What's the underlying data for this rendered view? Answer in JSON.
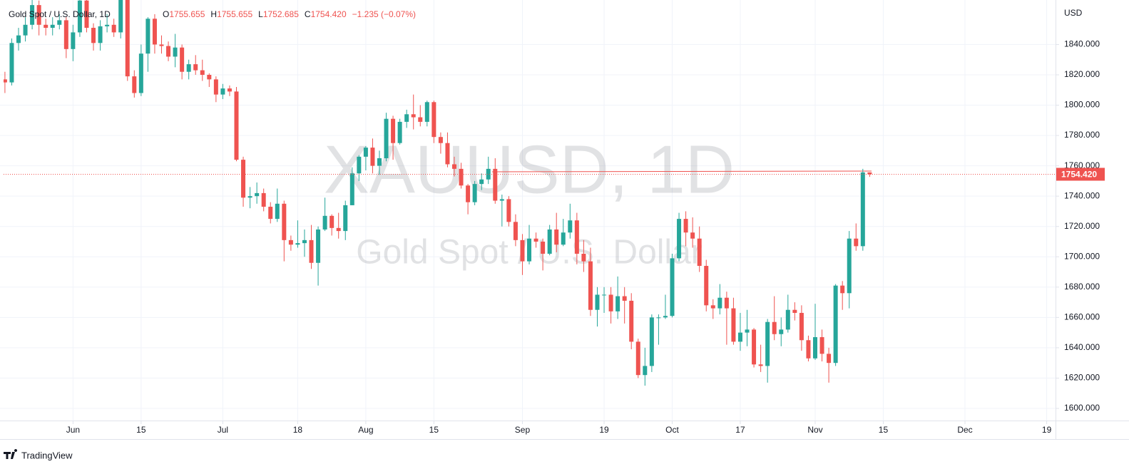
{
  "chart_data": {
    "type": "candlestick",
    "title": "Gold Spot / U.S. Dollar, 1D",
    "ohlc_header": [
      {
        "label": "O",
        "value": "1755.655"
      },
      {
        "label": "H",
        "value": "1755.655"
      },
      {
        "label": "L",
        "value": "1752.685"
      },
      {
        "label": "C",
        "value": "1754.420"
      }
    ],
    "change": "−1.235 (−0.07%)",
    "watermark": "XAUUSD, 1D",
    "watermark_subtitle": "Gold Spot / U.S. Dollar",
    "y_axis_label": "USD",
    "last_price_label": "1754.420",
    "brand": "TradingView",
    "up_color": "#26a69a",
    "down_color": "#ef5350",
    "grid": true,
    "open": [
      1817,
      1815,
      1841,
      1846,
      1853,
      1866,
      1853,
      1851,
      1853,
      1856,
      1837,
      1848,
      1869,
      1851,
      1841,
      1852,
      1853,
      1848,
      1871,
      1819,
      1808,
      1834,
      1857,
      1840,
      1839,
      1832,
      1838,
      1822,
      1827,
      1823,
      1820,
      1817,
      1807,
      1811,
      1809,
      1764,
      1739,
      1740,
      1742,
      1733,
      1725,
      1735,
      1711,
      1708,
      1709,
      1711,
      1696,
      1718,
      1727,
      1719,
      1717,
      1734,
      1755,
      1766,
      1772,
      1760,
      1765,
      1791,
      1775,
      1789,
      1794,
      1792,
      1789,
      1802,
      1779,
      1775,
      1761,
      1758,
      1747,
      1736,
      1748,
      1751,
      1758,
      1737,
      1738,
      1723,
      1711,
      1697,
      1712,
      1710,
      1702,
      1718,
      1708,
      1716,
      1724,
      1702,
      1697,
      1665,
      1675,
      1675,
      1664,
      1674,
      1671,
      1644,
      1622,
      1628,
      1660,
      1660,
      1661,
      1699,
      1725,
      1716,
      1712,
      1694,
      1668,
      1666,
      1673,
      1666,
      1644,
      1650,
      1652,
      1629,
      1628,
      1657,
      1649,
      1652,
      1665,
      1663,
      1645,
      1633,
      1647,
      1636,
      1630,
      1681,
      1676,
      1712,
      1707,
      1755.655
    ],
    "high": [
      1822,
      1844,
      1851,
      1858,
      1870,
      1869,
      1857,
      1858,
      1860,
      1858,
      1853,
      1872,
      1874,
      1854,
      1856,
      1860,
      1857,
      1875,
      1875,
      1823,
      1840,
      1858,
      1860,
      1846,
      1842,
      1847,
      1840,
      1830,
      1833,
      1830,
      1821,
      1819,
      1814,
      1813,
      1812,
      1766,
      1746,
      1749,
      1745,
      1736,
      1745,
      1737,
      1714,
      1724,
      1718,
      1721,
      1720,
      1739,
      1728,
      1729,
      1737,
      1759,
      1767,
      1773,
      1778,
      1770,
      1795,
      1793,
      1791,
      1797,
      1807,
      1800,
      1803,
      1803,
      1782,
      1782,
      1766,
      1762,
      1748,
      1750,
      1755,
      1766,
      1765,
      1741,
      1740,
      1728,
      1715,
      1721,
      1716,
      1712,
      1721,
      1729,
      1725,
      1735,
      1729,
      1711,
      1706,
      1680,
      1680,
      1680,
      1687,
      1680,
      1676,
      1646,
      1640,
      1662,
      1662,
      1675,
      1702,
      1729,
      1730,
      1726,
      1720,
      1698,
      1672,
      1682,
      1677,
      1673,
      1663,
      1665,
      1653,
      1642,
      1659,
      1674,
      1660,
      1675,
      1670,
      1668,
      1648,
      1669,
      1652,
      1640,
      1682,
      1684,
      1717,
      1722,
      1758,
      1755.655
    ],
    "low": [
      1808,
      1813,
      1836,
      1842,
      1850,
      1846,
      1846,
      1846,
      1850,
      1831,
      1829,
      1845,
      1848,
      1836,
      1836,
      1848,
      1845,
      1844,
      1816,
      1805,
      1806,
      1822,
      1834,
      1834,
      1829,
      1825,
      1817,
      1817,
      1820,
      1816,
      1812,
      1802,
      1804,
      1806,
      1763,
      1733,
      1732,
      1735,
      1730,
      1722,
      1723,
      1697,
      1704,
      1706,
      1700,
      1692,
      1681,
      1717,
      1714,
      1712,
      1711,
      1734,
      1750,
      1757,
      1755,
      1754,
      1763,
      1764,
      1774,
      1785,
      1784,
      1786,
      1786,
      1775,
      1768,
      1759,
      1753,
      1745,
      1728,
      1734,
      1744,
      1748,
      1735,
      1720,
      1720,
      1707,
      1688,
      1695,
      1706,
      1691,
      1701,
      1703,
      1707,
      1712,
      1695,
      1690,
      1661,
      1654,
      1663,
      1656,
      1659,
      1656,
      1639,
      1620,
      1615,
      1624,
      1642,
      1659,
      1660,
      1697,
      1707,
      1706,
      1690,
      1664,
      1659,
      1662,
      1642,
      1642,
      1638,
      1641,
      1627,
      1624,
      1617,
      1645,
      1641,
      1650,
      1658,
      1638,
      1631,
      1632,
      1631,
      1617,
      1628,
      1665,
      1666,
      1704,
      1704,
      1752.685
    ],
    "close": [
      1815,
      1841,
      1846,
      1853,
      1866,
      1853,
      1851,
      1853,
      1856,
      1837,
      1848,
      1869,
      1851,
      1841,
      1852,
      1853,
      1848,
      1871,
      1819,
      1808,
      1834,
      1857,
      1840,
      1839,
      1832,
      1838,
      1822,
      1827,
      1823,
      1820,
      1817,
      1807,
      1811,
      1809,
      1764,
      1739,
      1740,
      1742,
      1733,
      1725,
      1735,
      1711,
      1708,
      1709,
      1711,
      1696,
      1718,
      1727,
      1719,
      1717,
      1734,
      1755,
      1766,
      1772,
      1760,
      1765,
      1791,
      1775,
      1789,
      1794,
      1792,
      1789,
      1802,
      1779,
      1775,
      1761,
      1758,
      1747,
      1736,
      1748,
      1751,
      1758,
      1737,
      1738,
      1723,
      1711,
      1697,
      1712,
      1710,
      1702,
      1718,
      1708,
      1716,
      1724,
      1702,
      1697,
      1665,
      1675,
      1675,
      1664,
      1674,
      1671,
      1644,
      1622,
      1628,
      1660,
      1660,
      1661,
      1699,
      1725,
      1716,
      1712,
      1694,
      1668,
      1666,
      1673,
      1666,
      1644,
      1650,
      1652,
      1629,
      1628,
      1657,
      1649,
      1652,
      1665,
      1663,
      1645,
      1633,
      1647,
      1636,
      1630,
      1681,
      1676,
      1712,
      1707,
      1755.655,
      1754.42
    ],
    "xlim": [
      -0.2,
      154.3
    ],
    "xticks": [
      {
        "value": 10,
        "label": "Jun"
      },
      {
        "value": 20,
        "label": "15"
      },
      {
        "value": 32,
        "label": "Jul"
      },
      {
        "value": 43,
        "label": "18"
      },
      {
        "value": 53,
        "label": "Aug"
      },
      {
        "value": 63,
        "label": "15"
      },
      {
        "value": 76,
        "label": "Sep"
      },
      {
        "value": 88,
        "label": "19"
      },
      {
        "value": 98,
        "label": "Oct"
      },
      {
        "value": 108,
        "label": "17"
      },
      {
        "value": 119,
        "label": "Nov"
      },
      {
        "value": 129,
        "label": "15"
      },
      {
        "value": 141,
        "label": "Dec"
      },
      {
        "value": 153,
        "label": "19"
      }
    ],
    "ylim": [
      1592,
      1867
    ],
    "yticks": [
      {
        "value": 1600,
        "label": "1600.000"
      },
      {
        "value": 1620,
        "label": "1620.000"
      },
      {
        "value": 1640,
        "label": "1640.000"
      },
      {
        "value": 1660,
        "label": "1660.000"
      },
      {
        "value": 1680,
        "label": "1680.000"
      },
      {
        "value": 1700,
        "label": "1700.000"
      },
      {
        "value": 1720,
        "label": "1720.000"
      },
      {
        "value": 1740,
        "label": "1740.000"
      },
      {
        "value": 1760,
        "label": "1760.000"
      },
      {
        "value": 1780,
        "label": "1780.000"
      },
      {
        "value": 1800,
        "label": "1800.000"
      },
      {
        "value": 1820,
        "label": "1820.000"
      },
      {
        "value": 1840,
        "label": "1840.000"
      }
    ]
  }
}
